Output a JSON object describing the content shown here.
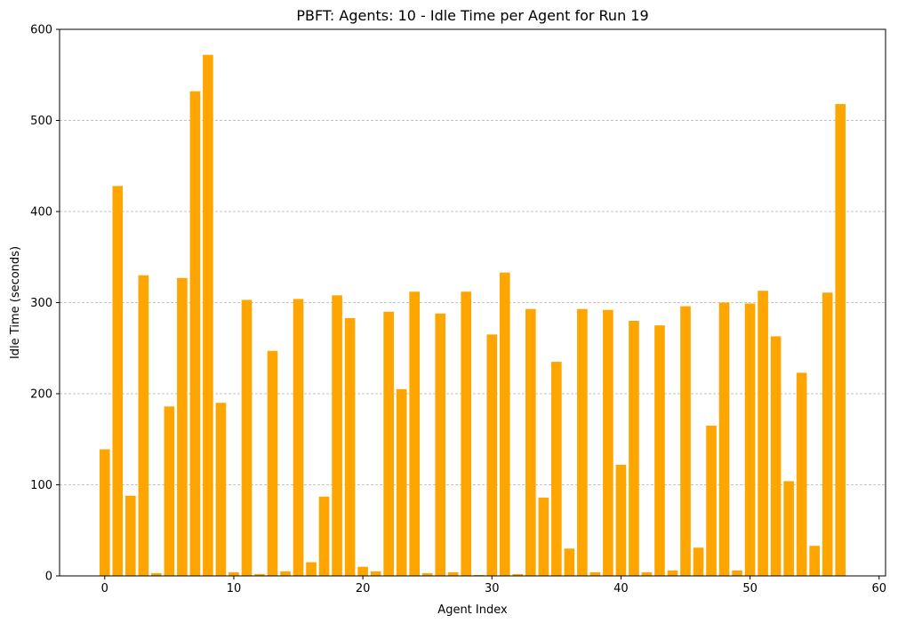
{
  "chart_data": {
    "type": "bar",
    "title": "PBFT: Agents: 10 - Idle Time per Agent for Run 19",
    "xlabel": "Agent Index",
    "ylabel": "Idle Time (seconds)",
    "xlim": [
      -3.5,
      60.5
    ],
    "ylim": [
      0,
      600
    ],
    "xticks": [
      0,
      10,
      20,
      30,
      40,
      50,
      60
    ],
    "yticks": [
      0,
      100,
      200,
      300,
      400,
      500,
      600
    ],
    "grid": "horizontal dashed",
    "bar_color": "#ffa500",
    "x": [
      0,
      1,
      2,
      3,
      4,
      5,
      6,
      7,
      8,
      9,
      10,
      11,
      12,
      13,
      14,
      15,
      16,
      17,
      18,
      19,
      20,
      21,
      22,
      23,
      24,
      25,
      26,
      27,
      28,
      29,
      30,
      31,
      32,
      33,
      34,
      35,
      36,
      37,
      38,
      39,
      40,
      41,
      42,
      43,
      44,
      45,
      46,
      47,
      48,
      49,
      50,
      51,
      52,
      53,
      54,
      55,
      56,
      57
    ],
    "values": [
      139,
      428,
      88,
      330,
      3,
      186,
      327,
      532,
      572,
      190,
      4,
      303,
      2,
      247,
      5,
      304,
      15,
      87,
      308,
      283,
      10,
      5,
      290,
      205,
      312,
      3,
      288,
      4,
      312,
      1,
      265,
      333,
      2,
      293,
      86,
      235,
      30,
      293,
      4,
      292,
      122,
      280,
      4,
      275,
      6,
      296,
      31,
      165,
      300,
      6,
      299,
      313,
      263,
      104,
      223,
      33,
      311,
      518
    ]
  }
}
